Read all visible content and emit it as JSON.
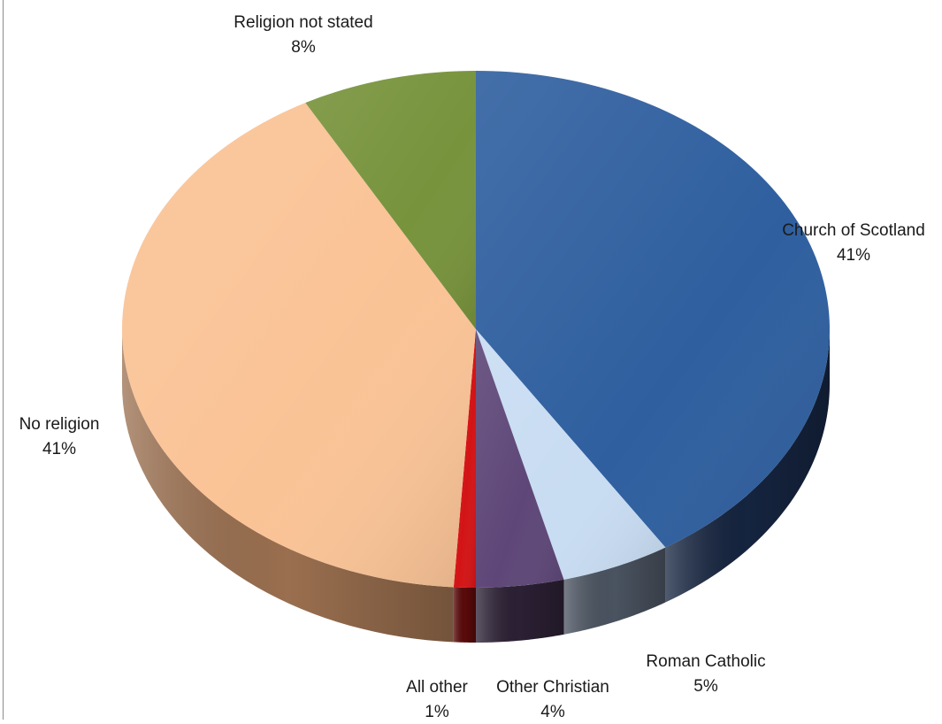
{
  "chart_data": {
    "type": "pie",
    "style": "3d-exploded-tilt",
    "title": "",
    "slices": [
      {
        "label": "Church of Scotland",
        "percent_label": "41%",
        "value": 41,
        "color": "#2f5f9f",
        "side_color": "#15243f"
      },
      {
        "label": "Roman Catholic",
        "percent_label": "5%",
        "value": 5,
        "color": "#c8dcf2",
        "side_color": "#4a5360"
      },
      {
        "label": "Other Christian",
        "percent_label": "4%",
        "value": 4,
        "color": "#5e4778",
        "side_color": "#2b2034"
      },
      {
        "label": "All other",
        "percent_label": "1%",
        "value": 1,
        "color": "#d31416",
        "side_color": "#5a0a0a"
      },
      {
        "label": "No religion",
        "percent_label": "41%",
        "value": 41,
        "color": "#fac396",
        "side_color": "#9a6f4f"
      },
      {
        "label": "Religion not stated",
        "percent_label": "8%",
        "value": 8,
        "color": "#77933c",
        "side_color": "#3d4c1f"
      }
    ],
    "legend": "none",
    "data_labels": "category-and-percent"
  }
}
